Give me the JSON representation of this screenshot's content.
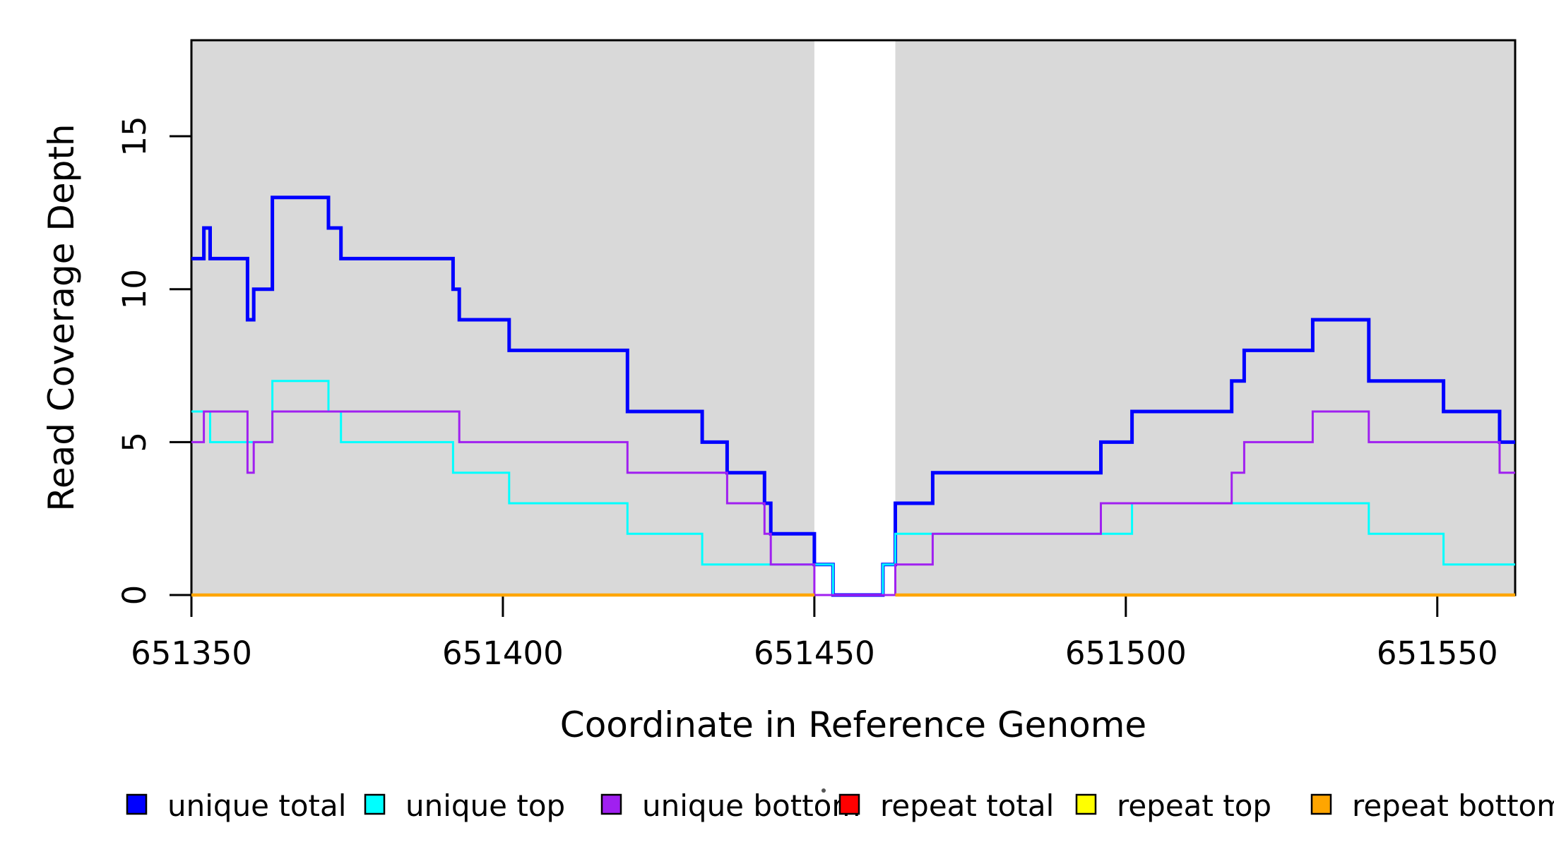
{
  "chart_data": {
    "type": "line",
    "subtype": "step",
    "title": "",
    "xlabel": "Coordinate in Reference Genome",
    "ylabel": "Read Coverage Depth",
    "xlim": [
      651350,
      651562.5
    ],
    "ylim": [
      0,
      18.14
    ],
    "x_ticks": [
      651350,
      651400,
      651450,
      651500,
      651550
    ],
    "y_ticks": [
      0,
      5,
      10,
      15
    ],
    "grid": false,
    "legend_position": "bottom",
    "shaded_regions": {
      "color": "#d9d9d9",
      "spans": [
        [
          651350,
          651450
        ],
        [
          651463,
          651562.5
        ]
      ]
    },
    "series": [
      {
        "name": "unique total",
        "color": "#0000ff",
        "segments": [
          {
            "steps": [
              [
                651350,
                11
              ],
              [
                651352,
                12
              ],
              [
                651353,
                11
              ],
              [
                651359,
                9
              ],
              [
                651360,
                10
              ],
              [
                651363,
                13
              ],
              [
                651372,
                12
              ],
              [
                651374,
                11
              ],
              [
                651392,
                10
              ],
              [
                651393,
                9
              ],
              [
                651401,
                8
              ],
              [
                651420,
                6
              ],
              [
                651432,
                5
              ],
              [
                651436,
                4
              ],
              [
                651442,
                3
              ],
              [
                651443,
                2
              ],
              [
                651450,
                1
              ],
              [
                651453,
                0
              ],
              [
                651461,
                1
              ],
              [
                651463,
                3
              ],
              [
                651469,
                4
              ],
              [
                651496,
                5
              ],
              [
                651501,
                6
              ],
              [
                651517,
                7
              ],
              [
                651519,
                8
              ],
              [
                651530,
                9
              ],
              [
                651539,
                7
              ],
              [
                651551,
                6
              ],
              [
                651560,
                5
              ]
            ],
            "end": 651562.5
          }
        ]
      },
      {
        "name": "unique top",
        "color": "#00ffff",
        "segments": [
          {
            "steps": [
              [
                651350,
                6
              ],
              [
                651353,
                5
              ],
              [
                651363,
                7
              ],
              [
                651372,
                6
              ],
              [
                651374,
                5
              ],
              [
                651392,
                4
              ],
              [
                651401,
                3
              ],
              [
                651420,
                2
              ],
              [
                651432,
                1
              ],
              [
                651453,
                0
              ],
              [
                651461,
                1
              ],
              [
                651463,
                2
              ],
              [
                651501,
                3
              ],
              [
                651539,
                2
              ],
              [
                651551,
                1
              ]
            ],
            "end": 651562.5
          }
        ]
      },
      {
        "name": "unique bottom",
        "color": "#a020f0",
        "segments": [
          {
            "steps": [
              [
                651350,
                5
              ],
              [
                651352,
                6
              ],
              [
                651359,
                4
              ],
              [
                651360,
                5
              ],
              [
                651363,
                6
              ],
              [
                651393,
                5
              ],
              [
                651420,
                4
              ],
              [
                651436,
                3
              ],
              [
                651442,
                2
              ],
              [
                651443,
                1
              ],
              [
                651450,
                0
              ],
              [
                651463,
                1
              ],
              [
                651469,
                2
              ],
              [
                651496,
                3
              ],
              [
                651517,
                4
              ],
              [
                651519,
                5
              ],
              [
                651530,
                6
              ],
              [
                651539,
                5
              ],
              [
                651560,
                4
              ]
            ],
            "end": 651562.5
          }
        ]
      },
      {
        "name": "repeat total",
        "color": "#ff0000",
        "segments": [
          {
            "steps": [
              [
                651350,
                0
              ]
            ],
            "end": 651450
          },
          {
            "steps": [
              [
                651463,
                0
              ]
            ],
            "end": 651562.5
          }
        ]
      },
      {
        "name": "repeat top",
        "color": "#ffff00",
        "segments": [
          {
            "steps": [
              [
                651350,
                0
              ]
            ],
            "end": 651450
          },
          {
            "steps": [
              [
                651463,
                0
              ]
            ],
            "end": 651562.5
          }
        ]
      },
      {
        "name": "repeat bottom",
        "color": "#ffa500",
        "segments": [
          {
            "steps": [
              [
                651350,
                0
              ]
            ],
            "end": 651450
          },
          {
            "steps": [
              [
                651463,
                0
              ]
            ],
            "end": 651562.5
          }
        ]
      }
    ],
    "legend": [
      "unique total",
      "unique top",
      "unique bottom",
      "repeat total",
      "repeat top",
      "repeat bottom"
    ]
  }
}
